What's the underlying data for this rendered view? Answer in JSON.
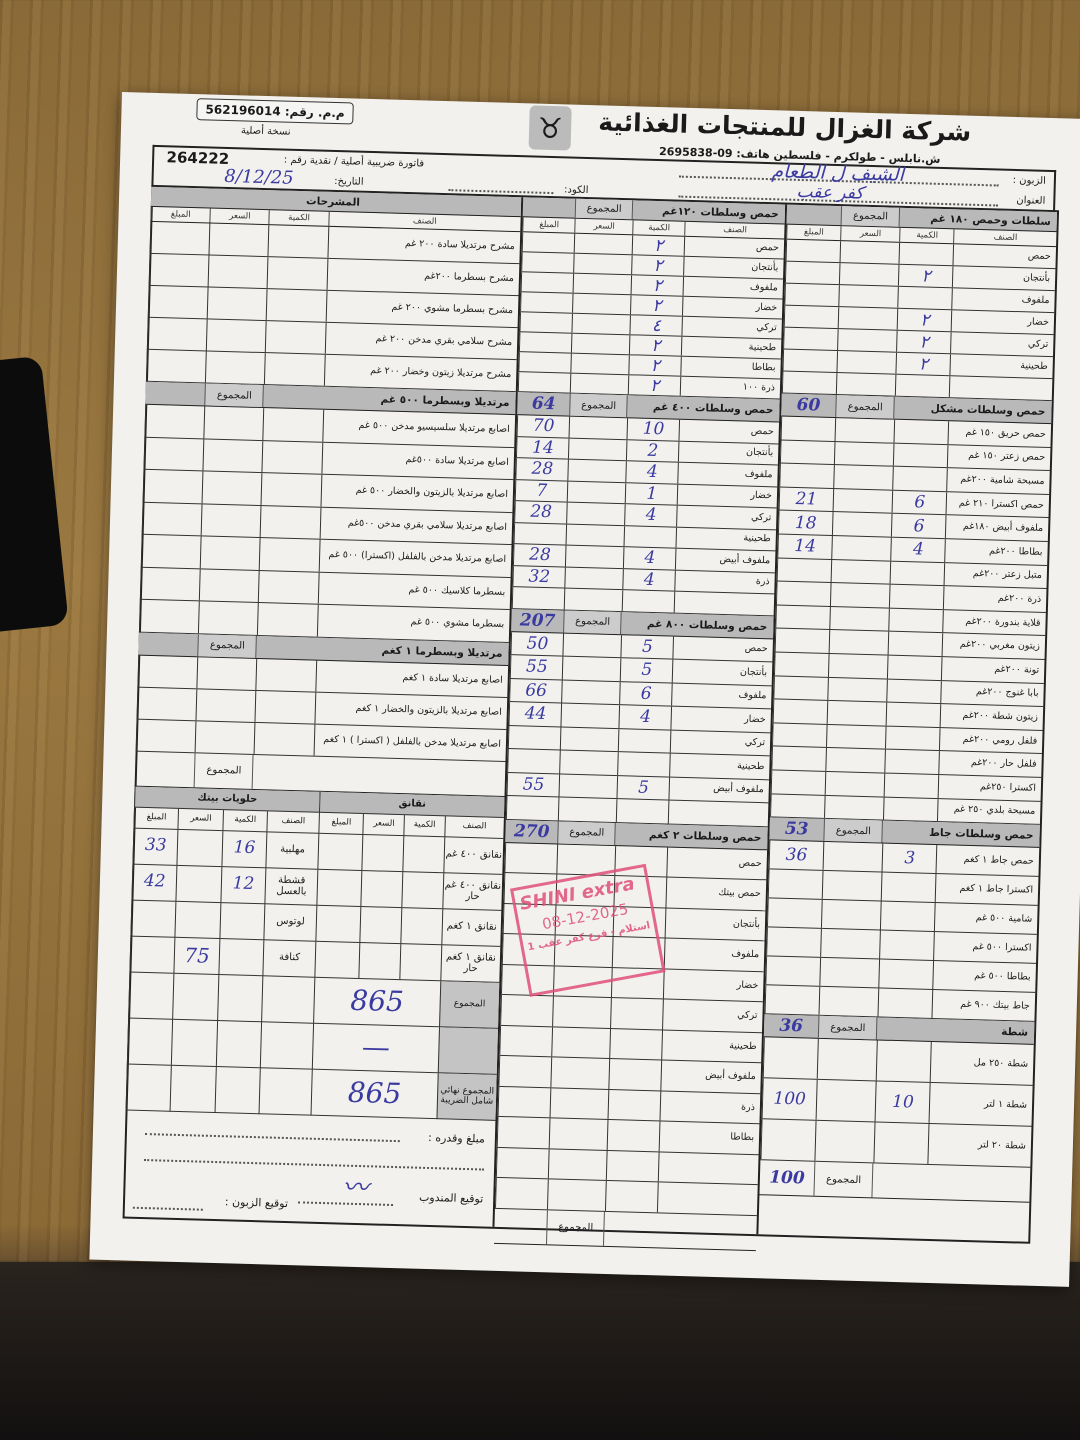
{
  "header": {
    "company": "شركة الغزال للمنتجات الغذائية",
    "address": "ش.نابلس - طولكرم - فلسطين  هاتف: 09-2695838",
    "mm_label": "م.م. رقم:",
    "mm_number": "562196014",
    "copy": "نسخة أصلية"
  },
  "invoice": {
    "type_label": "فاتورة ضريبية أصلية / نقدية  رقم :",
    "number": "264222",
    "date_label": "التاريخ:",
    "date": "8/12/25",
    "code_label": "الكود:",
    "customer_label": "الزبون :",
    "customer": "الشيف ل الطعام",
    "address_label": "العنوان",
    "address": "كفر عقب"
  },
  "columns": {
    "item": "الصنف",
    "qty": "الكمية",
    "price": "السعر",
    "amount": "المبلغ",
    "total": "المجموع"
  },
  "right": [
    {
      "title": "سلطات وحمص ١٨٠ غم",
      "show_cols": true,
      "rows": [
        {
          "item": "حمص"
        },
        {
          "item": "بأنتجان",
          "qty": "٢"
        },
        {
          "item": "ملفوف"
        },
        {
          "item": "خضار",
          "qty": "٢"
        },
        {
          "item": "تركي",
          "qty": "٢"
        },
        {
          "item": "طحينية",
          "qty": "٢"
        },
        {
          "item": ""
        }
      ]
    },
    {
      "title": "حمص وسلطات مشكل",
      "prev_total": "60",
      "rows": [
        {
          "item": "حمص حريق ١٥٠ غم"
        },
        {
          "item": "حمص زعتر ١٥٠ غم"
        },
        {
          "item": "مسبحة شامية ٢٠٠غم"
        },
        {
          "item": "حمص اكسترا ٢١٠ غم",
          "qty": "6",
          "amount": "21"
        },
        {
          "item": "ملفوف أبيض ١٨٠غم",
          "qty": "6",
          "amount": "18"
        },
        {
          "item": "بطاطا ٢٠٠غم",
          "qty": "4",
          "amount": "14"
        },
        {
          "item": "متبل زعتر ٢٠٠غم"
        },
        {
          "item": "ذرة ٢٠٠غم"
        },
        {
          "item": "قلاية بندورة ٢٠٠غم"
        },
        {
          "item": "زيتون مغربي ٢٠٠غم"
        },
        {
          "item": "تونة ٢٠٠غم"
        },
        {
          "item": "بابا غنوج ٢٠٠غم"
        },
        {
          "item": "زيتون شطة ٢٠٠غم"
        },
        {
          "item": "فلفل رومي ٢٠٠غم"
        },
        {
          "item": "فلفل حار ٢٠٠غم"
        },
        {
          "item": "اكسترا ٢٥٠غم"
        },
        {
          "item": "مسبحة بلدي ٢٥٠ غم"
        }
      ]
    },
    {
      "title": "حمص وسلطات جاط",
      "prev_total": "53",
      "rows": [
        {
          "item": "حمص جاط ١ كغم",
          "qty": "3",
          "amount": "36"
        },
        {
          "item": "اكسترا جاط ١ كغم"
        },
        {
          "item": "شامية ٥٠٠ غم"
        },
        {
          "item": "اكسترا ٥٠٠ غم"
        },
        {
          "item": "بطاطا ٥٠٠ غم"
        },
        {
          "item": "جاط بيتك ٩٠٠ غم"
        }
      ]
    },
    {
      "title": "شطة",
      "prev_total": "36",
      "rows": [
        {
          "item": "شطة ٢٥٠ مل"
        },
        {
          "item": "شطة ١ لتر",
          "qty": "10",
          "amount": "100"
        },
        {
          "item": "شطة ٢٠ لتر"
        }
      ],
      "bottom_total": "100"
    }
  ],
  "middle": [
    {
      "title": "حمص وسلطات ١٢٠غم",
      "show_cols": true,
      "rows": [
        {
          "item": "حمص",
          "qty": "٢"
        },
        {
          "item": "بأنتجان",
          "qty": "٢"
        },
        {
          "item": "ملفوف",
          "qty": "٢"
        },
        {
          "item": "خضار",
          "qty": "٢"
        },
        {
          "item": "تركي",
          "qty": "٤"
        },
        {
          "item": "طحينية",
          "qty": "٢"
        },
        {
          "item": "بطاطا",
          "qty": "٢"
        },
        {
          "item": "ذرة ١٠٠",
          "qty": "٢"
        }
      ]
    },
    {
      "title": "حمص وسلطات ٤٠٠ غم",
      "prev_total": "64",
      "rows": [
        {
          "item": "حمص",
          "qty": "10",
          "amount": "70"
        },
        {
          "item": "بأنتجان",
          "qty": "2",
          "amount": "14"
        },
        {
          "item": "ملفوف",
          "qty": "4",
          "amount": "28"
        },
        {
          "item": "خضار",
          "qty": "1",
          "amount": "7"
        },
        {
          "item": "تركي",
          "qty": "4",
          "amount": "28"
        },
        {
          "item": "طحينية"
        },
        {
          "item": "ملفوف أبيض",
          "qty": "4",
          "amount": "28"
        },
        {
          "item": "ذرة",
          "qty": "4",
          "amount": "32"
        },
        {
          "item": ""
        }
      ]
    },
    {
      "title": "حمص وسلطات ٨٠٠ غم",
      "prev_total": "207",
      "rows": [
        {
          "item": "حمص",
          "qty": "5",
          "amount": "50"
        },
        {
          "item": "بأنتجان",
          "qty": "5",
          "amount": "55"
        },
        {
          "item": "ملفوف",
          "qty": "6",
          "amount": "66"
        },
        {
          "item": "خضار",
          "qty": "4",
          "amount": "44"
        },
        {
          "item": "تركي"
        },
        {
          "item": "طحينية"
        },
        {
          "item": "ملفوف أبيض",
          "qty": "5",
          "amount": "55"
        },
        {
          "item": ""
        }
      ]
    },
    {
      "title": "حمص وسلطات ٢ كغم",
      "prev_total": "270",
      "rows": [
        {
          "item": "حمص"
        },
        {
          "item": "حمص بيتك"
        },
        {
          "item": "بأنتجان"
        },
        {
          "item": "ملفوف"
        },
        {
          "item": "خضار"
        },
        {
          "item": "تركي"
        },
        {
          "item": "طحينية"
        },
        {
          "item": "ملفوف أبيض"
        },
        {
          "item": "ذرة"
        },
        {
          "item": "بطاطا"
        },
        {
          "item": ""
        },
        {
          "item": ""
        }
      ],
      "bottom_total": ""
    }
  ],
  "left": [
    {
      "title": "المشرحات",
      "show_cols": true,
      "full_title": true,
      "rows": [
        {
          "item": "مشرح مرتديلا سادة ٢٠٠ غم"
        },
        {
          "item": "مشرح بسطرما ٢٠٠غم"
        },
        {
          "item": "مشرح بسطرما مشوي ٢٠٠ غم"
        },
        {
          "item": "مشرح سلامي بقري مدخن ٢٠٠ غم"
        },
        {
          "item": "مشرح مرتديلا زيتون وخضار ٢٠٠ غم"
        }
      ]
    },
    {
      "title": "مرتديلا وبسطرما ٥٠٠ غم",
      "prev_total": "",
      "rows": [
        {
          "item": "اصابع مرتديلا سلسيسيو مدخن ٥٠٠ غم"
        },
        {
          "item": "اصابع مرتديلا سادة ٥٠٠غم"
        },
        {
          "item": "اصابع مرتديلا بالزيتون والخضار ٥٠٠ غم"
        },
        {
          "item": "اصابع مرتديلا سلامي بقري مدخن ٥٠٠غم"
        },
        {
          "item": "اصابع مرتديلا مدخن بالفلفل (اكسترا) ٥٠٠ غم"
        },
        {
          "item": "بسطرما كلاسيك ٥٠٠ غم"
        },
        {
          "item": "بسطرما مشوي ٥٠٠ غم"
        }
      ]
    },
    {
      "title": "مرتديلا وبسطرما ١ كغم",
      "prev_total": "",
      "rows": [
        {
          "item": "اصابع مرتديلا سادة ١ كغم"
        },
        {
          "item": "اصابع مرتديلا بالزيتون والخضار ١ كغم"
        },
        {
          "item": "اصابع مرتديلا مدخن بالفلفل ( اكسترا ) ١ كغم"
        }
      ],
      "bottom_total": ""
    }
  ],
  "sausages": {
    "title": "نقانق",
    "rows": [
      {
        "item": "نقانق ٤٠٠ غم"
      },
      {
        "item": "نقانق ٤٠٠ غم حار"
      },
      {
        "item": "نقانق ١ كغم"
      },
      {
        "item": "نقانق ١ كغم حار"
      }
    ]
  },
  "sweets": {
    "title": "حلويات بيتك",
    "rows": [
      {
        "item": "مهلبية",
        "qty": "16",
        "amount": "33"
      },
      {
        "item": "قشطة بالعسل",
        "qty": "12",
        "amount": "42"
      },
      {
        "item": "لوتوس"
      },
      {
        "item": "كنافة"
      }
    ],
    "total": "75"
  },
  "totals": {
    "label": "المجموع",
    "value": "865",
    "discount": "—",
    "final_label": "المجموع نهائي شامل الضريبة",
    "final_value": "865"
  },
  "footer": {
    "amount_words_label": "مبلغ وقدره :",
    "rep_signature_label": "توقيع المندوب",
    "customer_signature_label": "توقيع الزبون :"
  },
  "stamp": {
    "brand": "SHINI extra",
    "date": "08-12-2025",
    "text": "استلام - فرع كفر عقب 1",
    "color": "#e0507a"
  },
  "colors": {
    "ink": "#3a3aa0",
    "header_gray": "#b9b9b9"
  }
}
